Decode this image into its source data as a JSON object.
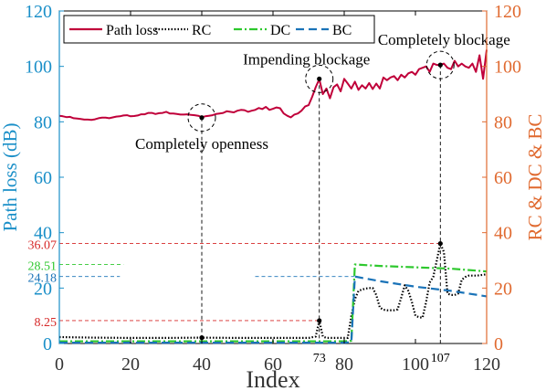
{
  "chart_data": {
    "type": "line",
    "xlabel": "Index",
    "ylabel_left": "Path loss (dB)",
    "ylabel_right": "RC & DC & BC",
    "xlim": [
      0,
      120
    ],
    "ylim_left": [
      0,
      120
    ],
    "ylim_right": [
      0,
      120
    ],
    "xticks": [
      "0",
      "20",
      "40",
      "60",
      "80",
      "100",
      "120"
    ],
    "yticks_left": [
      "0",
      "20",
      "40",
      "60",
      "80",
      "100",
      "120"
    ],
    "yticks_right": [
      "0",
      "20",
      "40",
      "60",
      "80",
      "100",
      "120"
    ],
    "grid": false,
    "legend_position": "top",
    "colors": {
      "path_loss": "#c0003a",
      "rc": "#000000",
      "dc": "#2ec82e",
      "bc": "#1a73b8",
      "left_axis": "#1a8fc8",
      "right_axis": "#e06a30",
      "ref_red": "#d62828",
      "ref_green": "#2ec82e",
      "ref_blue": "#1a73b8"
    },
    "series": [
      {
        "name": "Path loss",
        "axis": "left",
        "style": "solid",
        "x": [
          0,
          1,
          2,
          3,
          4,
          5,
          6,
          7,
          8,
          9,
          10,
          11,
          12,
          13,
          14,
          15,
          16,
          17,
          18,
          19,
          20,
          21,
          22,
          23,
          24,
          25,
          26,
          27,
          28,
          29,
          30,
          31,
          32,
          33,
          34,
          35,
          36,
          37,
          38,
          39,
          40,
          41,
          42,
          43,
          44,
          45,
          46,
          47,
          48,
          49,
          50,
          51,
          52,
          53,
          54,
          55,
          56,
          57,
          58,
          59,
          60,
          61,
          62,
          63,
          64,
          65,
          66,
          67,
          68,
          69,
          70,
          71,
          72,
          73,
          74,
          75,
          76,
          77,
          78,
          79,
          80,
          81,
          82,
          83,
          84,
          85,
          86,
          87,
          88,
          89,
          90,
          91,
          92,
          93,
          94,
          95,
          96,
          97,
          98,
          99,
          100,
          101,
          102,
          103,
          104,
          105,
          106,
          107,
          108,
          109,
          110,
          111,
          112,
          113,
          114,
          115,
          116,
          117,
          118,
          119,
          120
        ],
        "values": [
          82.2,
          82.0,
          81.7,
          81.8,
          81.3,
          81.2,
          81.0,
          80.8,
          80.8,
          80.7,
          80.9,
          81.3,
          81.5,
          81.5,
          81.3,
          81.6,
          81.9,
          82.0,
          82.3,
          82.4,
          82.0,
          82.1,
          82.3,
          82.7,
          82.7,
          83.2,
          83.2,
          82.8,
          83.1,
          83.2,
          83.6,
          83.0,
          83.0,
          82.8,
          82.6,
          82.6,
          82.7,
          82.5,
          82.4,
          82.2,
          81.7,
          82.0,
          82.2,
          82.4,
          82.8,
          83.0,
          83.2,
          83.8,
          83.6,
          83.4,
          84.0,
          84.3,
          84.2,
          83.6,
          84.0,
          84.3,
          85.0,
          84.6,
          85.4,
          84.3,
          84.7,
          85.2,
          84.9,
          83.0,
          82.2,
          81.6,
          82.6,
          83.0,
          84.0,
          85.5,
          86.0,
          89.0,
          92.5,
          95.4,
          90.0,
          92.0,
          88.5,
          92.5,
          93.5,
          91.0,
          95.5,
          93.8,
          92.0,
          94.5,
          91.5,
          93.2,
          92.0,
          94.0,
          91.8,
          93.8,
          92.0,
          96.0,
          95.0,
          96.0,
          96.5,
          95.0,
          97.0,
          96.0,
          97.5,
          98.0,
          97.0,
          99.0,
          99.5,
          100.0,
          98.0,
          101.0,
          100.5,
          100.5,
          101.0,
          99.5,
          99.0,
          102.0,
          100.0,
          101.0,
          100.0,
          99.5,
          101.0,
          98.0,
          104.0,
          95.5,
          106.0
        ]
      },
      {
        "name": "RC",
        "axis": "right",
        "style": "dotted",
        "x": [
          0,
          10,
          20,
          30,
          40,
          50,
          60,
          70,
          72,
          73,
          74,
          75,
          76,
          80,
          81,
          82,
          83,
          84,
          85,
          86,
          87,
          88,
          89,
          90,
          91,
          92,
          93,
          94,
          95,
          96,
          97,
          98,
          99,
          100,
          101,
          102,
          103,
          104,
          105,
          106,
          107,
          108,
          109,
          110,
          111,
          112,
          113,
          114,
          115,
          116,
          117,
          118,
          119,
          120
        ],
        "values": [
          2.3,
          2.1,
          2.0,
          2.0,
          2.1,
          2.0,
          2.0,
          2.0,
          2.5,
          8.25,
          2.5,
          2.0,
          2.0,
          2.0,
          2.0,
          10.0,
          16.0,
          19.0,
          19.5,
          19.8,
          20.0,
          20.0,
          17.5,
          13.0,
          12.2,
          12.0,
          12.0,
          12.0,
          12.3,
          16.5,
          21.0,
          19.0,
          15.0,
          10.0,
          9.5,
          9.3,
          15.0,
          22.0,
          24.0,
          30.0,
          36.07,
          33.0,
          18.0,
          17.5,
          17.5,
          18.0,
          23.0,
          24.0,
          24.5,
          24.5,
          24.5,
          24.6,
          24.8,
          25.0
        ]
      },
      {
        "name": "DC",
        "axis": "right",
        "style": "dashdot",
        "x": [
          0,
          40,
          80,
          82,
          83,
          90,
          100,
          110,
          120
        ],
        "values": [
          0.8,
          0.8,
          0.8,
          1.0,
          28.51,
          28.0,
          27.5,
          27.0,
          26.0
        ]
      },
      {
        "name": "BC",
        "axis": "right",
        "style": "dashed",
        "x": [
          0,
          40,
          80,
          82,
          83,
          90,
          100,
          110,
          120
        ],
        "values": [
          0.3,
          0.3,
          0.3,
          0.5,
          24.18,
          22.5,
          20.5,
          19.0,
          17.0
        ]
      }
    ],
    "reference_lines": [
      {
        "label": "36.07",
        "value": 36.07,
        "color_key": "ref_red"
      },
      {
        "label": "28.51",
        "value": 28.51,
        "color_key": "ref_green"
      },
      {
        "label": "24.18",
        "value": 24.18,
        "color_key": "ref_blue"
      },
      {
        "label": "8.25",
        "value": 8.25,
        "color_key": "ref_red"
      }
    ],
    "x_markers": [
      {
        "label": "73",
        "x": 73
      },
      {
        "label": "107",
        "x": 107
      }
    ],
    "annotations": [
      {
        "text": "Completely openness",
        "x": 40,
        "y": 81.5
      },
      {
        "text": "Impending blockage",
        "x": 73,
        "y": 95.5
      },
      {
        "text": "Completely blockage",
        "x": 107,
        "y": 100.5
      }
    ]
  }
}
